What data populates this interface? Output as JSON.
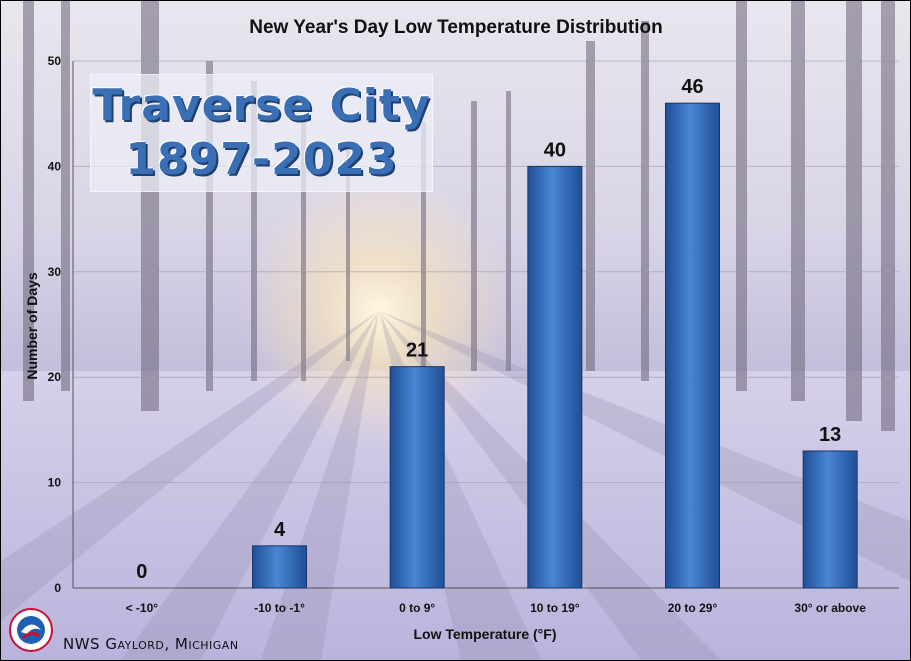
{
  "inset": {
    "line1": "Traverse City",
    "line2": "1897-2023"
  },
  "footer": {
    "credit": "NWS Gaylord, Michigan"
  },
  "logo": {
    "icon": "nws-logo-icon"
  },
  "colors": {
    "bar": "#4a86d4",
    "bar_dark": "#1f4f96",
    "grid": "#9a9aa8"
  },
  "chart_data": {
    "type": "bar",
    "title": "New Year's Day Low Temperature Distribution",
    "xlabel": "Low Temperature (°F)",
    "ylabel": "Number of Days",
    "categories": [
      "< -10°",
      "-10 to -1°",
      "0 to 9°",
      "10 to 19°",
      "20 to 29°",
      "30° or above"
    ],
    "values": [
      0,
      4,
      21,
      40,
      46,
      13
    ],
    "data_labels": [
      "0",
      "4",
      "21",
      "40",
      "46",
      "13"
    ],
    "ylim": [
      0,
      50
    ],
    "yticks": [
      "0",
      "10",
      "20",
      "30",
      "40",
      "50"
    ],
    "grid": true
  }
}
